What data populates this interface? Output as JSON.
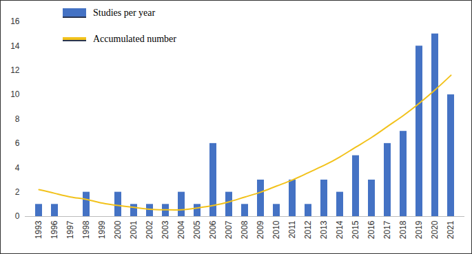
{
  "chart_data": {
    "type": "bar",
    "categories": [
      "1993",
      "1996",
      "1997",
      "1998",
      "1999",
      "2000",
      "2001",
      "2002",
      "2003",
      "2004",
      "2005",
      "2006",
      "2007",
      "2008",
      "2009",
      "2010",
      "2011",
      "2012",
      "2013",
      "2014",
      "2015",
      "2016",
      "2017",
      "2018",
      "2019",
      "2020",
      "2021"
    ],
    "series": [
      {
        "name": "Studies per year",
        "type": "bar",
        "color": "#4472c4",
        "values": [
          1,
          1,
          0,
          2,
          0,
          2,
          1,
          1,
          1,
          2,
          1,
          6,
          2,
          1,
          3,
          1,
          3,
          1,
          3,
          2,
          5,
          3,
          6,
          7,
          14,
          15,
          10
        ]
      },
      {
        "name": "Accumulated number",
        "type": "line",
        "color": "#f2c21b",
        "values": [
          2.2,
          1.9,
          1.6,
          1.4,
          1.1,
          0.9,
          0.75,
          0.6,
          0.55,
          0.55,
          0.7,
          0.9,
          1.2,
          1.6,
          2.0,
          2.5,
          3.0,
          3.6,
          4.2,
          4.9,
          5.7,
          6.5,
          7.4,
          8.3,
          9.3,
          10.4,
          11.6
        ]
      }
    ],
    "ylim": [
      0,
      16
    ],
    "yticks": [
      0,
      2,
      4,
      6,
      8,
      10,
      12,
      14,
      16
    ],
    "grid": false,
    "legend": "top-left"
  }
}
